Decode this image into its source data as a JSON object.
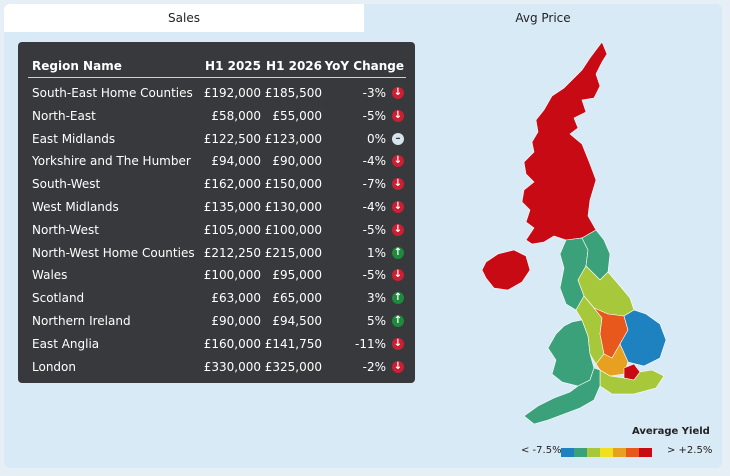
{
  "tabs": [
    {
      "label": "Sales",
      "active": true
    },
    {
      "label": "Avg Price",
      "active": false
    }
  ],
  "table": {
    "headers": {
      "region": "Region Name",
      "h1_2025": "H1 2025",
      "h1_2026": "H1 2026",
      "yoy": "YoY Change"
    },
    "rows": [
      {
        "region": "South-East Home Counties",
        "h1_2025": "£192,000",
        "h1_2026": "£185,500",
        "yoy": "-3%",
        "trend": "down"
      },
      {
        "region": "North-East",
        "h1_2025": "£58,000",
        "h1_2026": "£55,000",
        "yoy": "-5%",
        "trend": "down"
      },
      {
        "region": "East Midlands",
        "h1_2025": "£122,500",
        "h1_2026": "£123,000",
        "yoy": "0%",
        "trend": "flat"
      },
      {
        "region": "Yorkshire and The Humber",
        "h1_2025": "£94,000",
        "h1_2026": "£90,000",
        "yoy": "-4%",
        "trend": "down"
      },
      {
        "region": "South-West",
        "h1_2025": "£162,000",
        "h1_2026": "£150,000",
        "yoy": "-7%",
        "trend": "down"
      },
      {
        "region": "West Midlands",
        "h1_2025": "£135,000",
        "h1_2026": "£130,000",
        "yoy": "-4%",
        "trend": "down"
      },
      {
        "region": "North-West",
        "h1_2025": "£105,000",
        "h1_2026": "£100,000",
        "yoy": "-5%",
        "trend": "down"
      },
      {
        "region": "North-West Home Counties",
        "h1_2025": "£212,250",
        "h1_2026": "£215,000",
        "yoy": "1%",
        "trend": "up"
      },
      {
        "region": "Wales",
        "h1_2025": "£100,000",
        "h1_2026": "£95,000",
        "yoy": "-5%",
        "trend": "down"
      },
      {
        "region": "Scotland",
        "h1_2025": "£63,000",
        "h1_2026": "£65,000",
        "yoy": "3%",
        "trend": "up"
      },
      {
        "region": "Northern Ireland",
        "h1_2025": "£90,000",
        "h1_2026": "£94,500",
        "yoy": "5%",
        "trend": "up"
      },
      {
        "region": "East Anglia",
        "h1_2025": "£160,000",
        "h1_2026": "£141,750",
        "yoy": "-11%",
        "trend": "down"
      },
      {
        "region": "London",
        "h1_2025": "£330,000",
        "h1_2026": "£325,000",
        "yoy": "-2%",
        "trend": "down"
      }
    ]
  },
  "map": {
    "region_colors": {
      "scotland": "#c80a14",
      "northern_ireland": "#c80a14",
      "north_east": "#3ba17a",
      "north_west": "#3ba17a",
      "yorkshire": "#a8c83c",
      "wales": "#3ba17a",
      "west_midlands": "#a8c83c",
      "east_midlands": "#e8581c",
      "east_anglia": "#1e82c0",
      "south_west": "#3ba17a",
      "north_west_home_counties": "#e8a020",
      "london": "#c80a14",
      "south_east_home_counties": "#a8c83c"
    },
    "legend": {
      "title": "Average Yield",
      "low_label": "< -7.5%",
      "high_label": "> +2.5%",
      "colors": [
        "#1e82c0",
        "#3ba17a",
        "#a8c83c",
        "#f0e020",
        "#e8a020",
        "#e8581c",
        "#c80a14"
      ]
    }
  }
}
